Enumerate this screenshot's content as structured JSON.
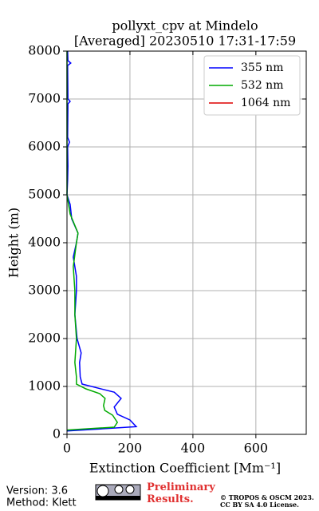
{
  "chart_data": {
    "type": "line",
    "title": "pollyxt_cpv at Mindelo",
    "subtitle": "[Averaged] 20230510 17:31-17:59",
    "x_label": "Extinction Coefficient [Mm⁻¹]",
    "y_label": "Height (m)",
    "xlim": [
      0,
      760
    ],
    "xticks": [
      0,
      200,
      400,
      600
    ],
    "ylim": [
      0,
      8000
    ],
    "yticks": [
      0,
      1000,
      2000,
      3000,
      4000,
      5000,
      6000,
      7000,
      8000
    ],
    "grid": true,
    "legend": "upper right",
    "series": [
      {
        "name": "355 nm",
        "color": "#0000ff",
        "heights": [
          70,
          160,
          300,
          420,
          570,
          750,
          880,
          1050,
          1200,
          1500,
          1700,
          2000,
          2500,
          3000,
          3300,
          3700,
          4000,
          4200,
          4500,
          4800,
          5000,
          5300,
          5600,
          6000,
          6100,
          6200,
          6900,
          6950,
          7000,
          7700,
          7750,
          7800,
          8000
        ],
        "values": [
          0,
          220,
          200,
          160,
          150,
          172,
          150,
          48,
          42,
          40,
          45,
          32,
          25,
          30,
          30,
          20,
          30,
          35,
          15,
          10,
          0,
          2,
          3,
          2,
          8,
          2,
          3,
          10,
          3,
          2,
          12,
          3,
          2
        ]
      },
      {
        "name": "532 nm",
        "color": "#00aa00",
        "heights": [
          90,
          150,
          250,
          400,
          500,
          600,
          750,
          850,
          950,
          1050,
          1200,
          1500,
          2000,
          2500,
          3000,
          3500,
          4000,
          4200,
          4600,
          5000,
          6000,
          7000,
          8000
        ],
        "values": [
          0,
          150,
          160,
          145,
          120,
          116,
          121,
          104,
          60,
          30,
          30,
          25,
          30,
          25,
          25,
          20,
          30,
          35,
          10,
          0,
          0,
          0,
          0
        ]
      },
      {
        "name": "1064 nm",
        "color": "#dd0000",
        "heights": [],
        "values": []
      }
    ]
  },
  "footer": {
    "version": "Version: 3.6",
    "method": "Method: Klett",
    "preliminary": "Preliminary Results.",
    "copyright": "© TROPOS & OSCM 2023.",
    "license": "CC BY SA 4.0 License."
  }
}
